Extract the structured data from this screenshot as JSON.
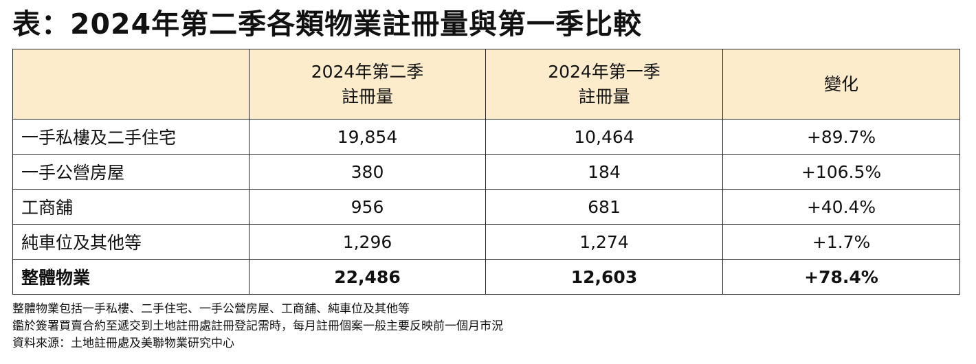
{
  "title": "表：2024年第二季各類物業註冊量與第一季比較",
  "table": {
    "headers": [
      {
        "line1": "",
        "line2": ""
      },
      {
        "line1": "2024年第二季",
        "line2": "註冊量"
      },
      {
        "line1": "2024年第一季",
        "line2": "註冊量"
      },
      {
        "line1": "變化",
        "line2": ""
      }
    ],
    "rows": [
      {
        "label": "一手私樓及二手住宅",
        "q2": "19,854",
        "q1": "10,464",
        "change": "+89.7%"
      },
      {
        "label": "一手公營房屋",
        "q2": "380",
        "q1": "184",
        "change": "+106.5%"
      },
      {
        "label": "工商舖",
        "q2": "956",
        "q1": "681",
        "change": "+40.4%"
      },
      {
        "label": "純車位及其他等",
        "q2": "1,296",
        "q1": "1,274",
        "change": "+1.7%"
      }
    ],
    "total": {
      "label": "整體物業",
      "q2": "22,486",
      "q1": "12,603",
      "change": "+78.4%"
    }
  },
  "footnotes": [
    "整體物業包括一手私樓、二手住宅、一手公營房屋、工商舖、純車位及其他等",
    "鑑於簽署買賣合約至遞交到土地註冊處註冊登記需時，每月註冊個案一般主要反映前一個月市況",
    "資料來源：土地註冊處及美聯物業研究中心"
  ]
}
